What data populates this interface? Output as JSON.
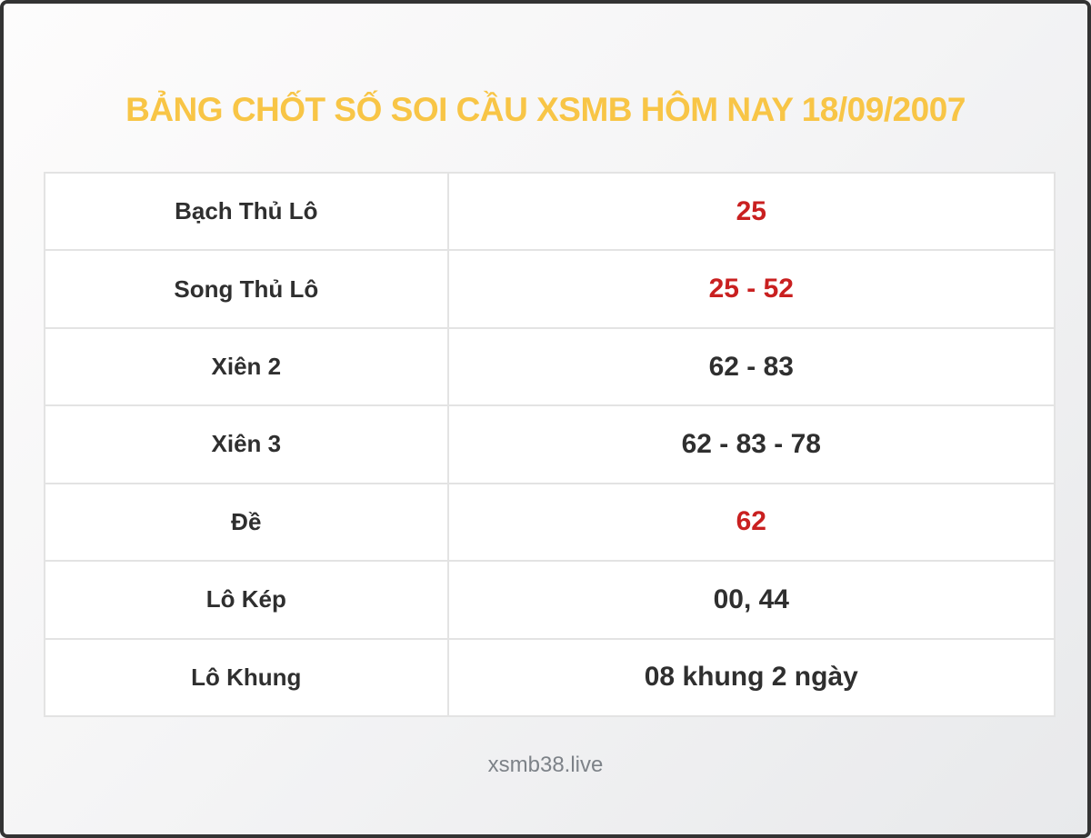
{
  "title": "BẢNG CHỐT SỐ SOI CẦU XSMB HÔM NAY 18/09/2007",
  "colors": {
    "title": "#f8c546",
    "value_red": "#c92020",
    "text_dark": "#2f2f2f",
    "footer_gray": "#7d8288",
    "table_border": "#e3e3e3"
  },
  "table": {
    "rows": [
      {
        "label": "Bạch Thủ Lô",
        "value": "25",
        "highlight": true
      },
      {
        "label": "Song Thủ Lô",
        "value": "25 - 52",
        "highlight": true
      },
      {
        "label": "Xiên 2",
        "value": "62 - 83",
        "highlight": false
      },
      {
        "label": "Xiên 3",
        "value": "62 - 83 - 78",
        "highlight": false
      },
      {
        "label": "Đề",
        "value": "62",
        "highlight": true
      },
      {
        "label": "Lô Kép",
        "value": "00, 44",
        "highlight": false
      },
      {
        "label": "Lô Khung",
        "value": "08 khung 2 ngày",
        "highlight": false
      }
    ]
  },
  "footer": {
    "site": "xsmb38.live"
  }
}
